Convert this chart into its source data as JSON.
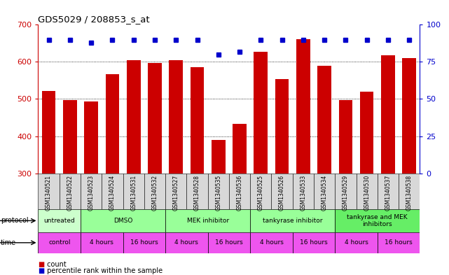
{
  "title": "GDS5029 / 208853_s_at",
  "samples": [
    "GSM1340521",
    "GSM1340522",
    "GSM1340523",
    "GSM1340524",
    "GSM1340531",
    "GSM1340532",
    "GSM1340527",
    "GSM1340528",
    "GSM1340535",
    "GSM1340536",
    "GSM1340525",
    "GSM1340526",
    "GSM1340533",
    "GSM1340534",
    "GSM1340529",
    "GSM1340530",
    "GSM1340537",
    "GSM1340538"
  ],
  "counts": [
    522,
    497,
    494,
    567,
    604,
    597,
    605,
    586,
    390,
    433,
    628,
    553,
    661,
    590,
    497,
    519,
    618,
    611
  ],
  "percentiles": [
    90,
    90,
    88,
    90,
    90,
    90,
    90,
    90,
    80,
    82,
    90,
    90,
    90,
    90,
    90,
    90,
    90,
    90
  ],
  "ylim_left": [
    300,
    700
  ],
  "ylim_right": [
    0,
    100
  ],
  "yticks_left": [
    300,
    400,
    500,
    600,
    700
  ],
  "yticks_right": [
    0,
    25,
    50,
    75,
    100
  ],
  "bar_color": "#cc0000",
  "dot_color": "#0000cc",
  "bg_color": "#ffffff",
  "grid_color": "#000000",
  "left_axis_color": "#cc0000",
  "right_axis_color": "#0000cc",
  "chart_bg": "#ffffff",
  "xtick_bg": "#d8d8d8",
  "proto_colors": [
    "#ccffcc",
    "#99ff99",
    "#99ff99",
    "#99ff99",
    "#66ee66"
  ],
  "time_color": "#ee55ee",
  "proto_groups": [
    [
      0,
      2,
      "untreated"
    ],
    [
      2,
      6,
      "DMSO"
    ],
    [
      6,
      10,
      "MEK inhibitor"
    ],
    [
      10,
      14,
      "tankyrase inhibitor"
    ],
    [
      14,
      18,
      "tankyrase and MEK\ninhibitors"
    ]
  ],
  "time_groups": [
    [
      0,
      2,
      "control"
    ],
    [
      2,
      4,
      "4 hours"
    ],
    [
      4,
      6,
      "16 hours"
    ],
    [
      6,
      8,
      "4 hours"
    ],
    [
      8,
      10,
      "16 hours"
    ],
    [
      10,
      12,
      "4 hours"
    ],
    [
      12,
      14,
      "16 hours"
    ],
    [
      14,
      16,
      "4 hours"
    ],
    [
      16,
      18,
      "16 hours"
    ]
  ]
}
